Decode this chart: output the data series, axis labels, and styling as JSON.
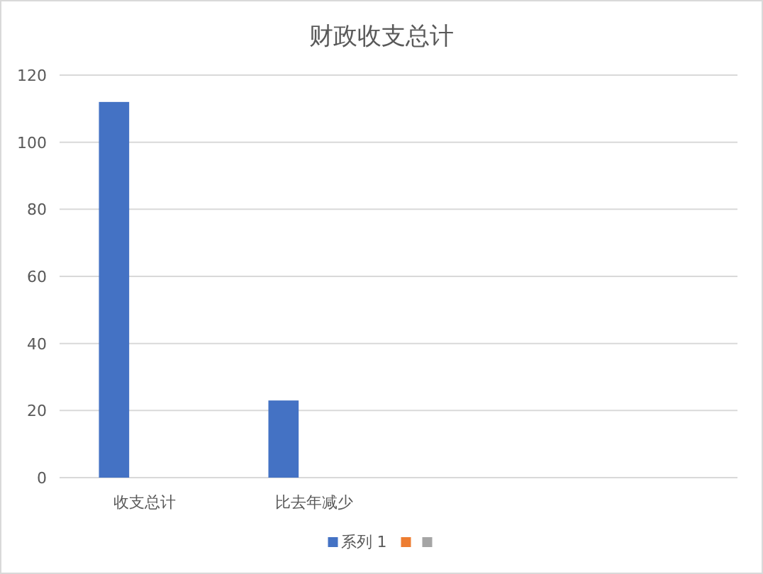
{
  "chart_data": {
    "type": "bar",
    "title": "财政收支总计",
    "categories": [
      "收支总计",
      "比去年减少",
      null,
      null
    ],
    "series": [
      {
        "name": "系列 1",
        "color": "#4472c4",
        "values": [
          112,
          23,
          null,
          null
        ]
      },
      {
        "color": "#ed7d31",
        "values": [
          null,
          null,
          null,
          null
        ]
      },
      {
        "color": "#a5a5a5",
        "values": [
          null,
          null,
          null,
          null
        ]
      }
    ],
    "ylim": [
      0,
      120
    ],
    "yticks": [
      0,
      20,
      40,
      60,
      80,
      100,
      120
    ],
    "grid": "y",
    "legend": "bottom"
  }
}
